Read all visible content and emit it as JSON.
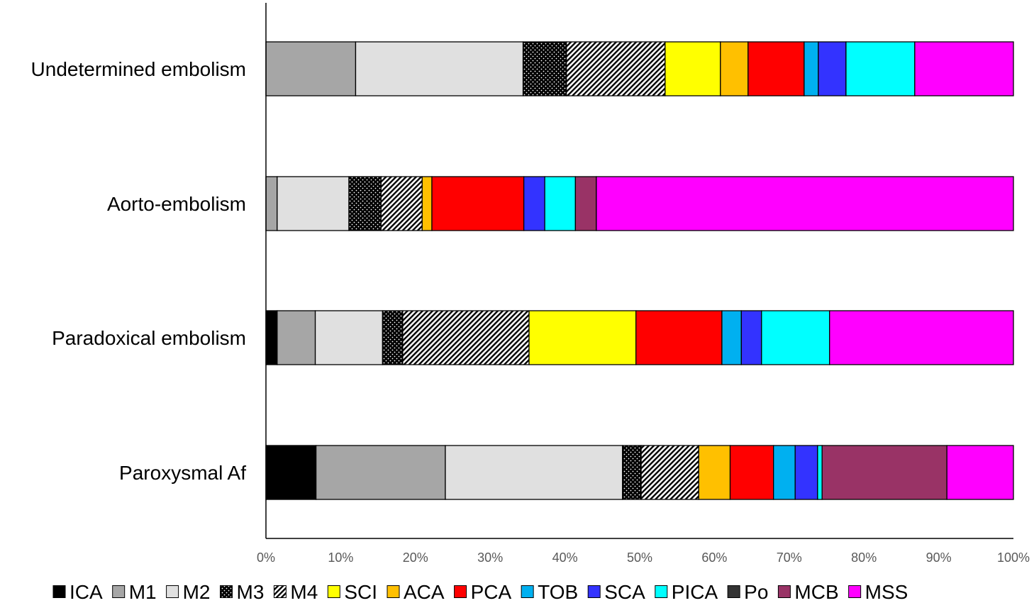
{
  "chart_data": {
    "type": "bar",
    "orientation": "horizontal",
    "stacked": "percent",
    "categories": [
      "Undetermined embolism",
      "Aorto-embolism",
      "Paradoxical embolism",
      "Paroxysmal Af"
    ],
    "xlim": [
      0,
      100
    ],
    "x_ticks": [
      "0%",
      "10%",
      "20%",
      "30%",
      "40%",
      "50%",
      "60%",
      "70%",
      "80%",
      "90%",
      "100%"
    ],
    "grid": false,
    "legend_position": "bottom",
    "series": [
      {
        "name": "ICA",
        "color": "#000000",
        "pattern": "solid",
        "values": [
          0,
          0,
          1.5,
          6.7
        ]
      },
      {
        "name": "M1",
        "color": "#a6a6a6",
        "pattern": "solid",
        "values": [
          12.0,
          1.5,
          5.1,
          17.3
        ]
      },
      {
        "name": "M2",
        "color": "#e0e0e0",
        "pattern": "solid",
        "values": [
          22.4,
          9.6,
          9.0,
          23.7
        ]
      },
      {
        "name": "M3",
        "color": "#000000",
        "pattern": "dots",
        "values": [
          5.8,
          4.3,
          2.7,
          2.5
        ]
      },
      {
        "name": "M4",
        "color": "#000000",
        "pattern": "hatch",
        "values": [
          13.2,
          5.5,
          16.9,
          7.7
        ]
      },
      {
        "name": "SCI",
        "color": "#ffff00",
        "pattern": "solid",
        "values": [
          7.4,
          0,
          14.3,
          0
        ]
      },
      {
        "name": "ACA",
        "color": "#ffc000",
        "pattern": "solid",
        "values": [
          3.7,
          1.3,
          0,
          4.2
        ]
      },
      {
        "name": "PCA",
        "color": "#ff0000",
        "pattern": "solid",
        "values": [
          7.5,
          12.3,
          11.5,
          5.8
        ]
      },
      {
        "name": "TOB",
        "color": "#00b0f0",
        "pattern": "solid",
        "values": [
          1.9,
          0,
          2.6,
          2.9
        ]
      },
      {
        "name": "SCA",
        "color": "#3333ff",
        "pattern": "solid",
        "values": [
          3.7,
          2.8,
          2.7,
          3.0
        ]
      },
      {
        "name": "PICA",
        "color": "#00ffff",
        "pattern": "solid",
        "values": [
          9.2,
          4.1,
          9.1,
          0.6
        ]
      },
      {
        "name": "Po",
        "color": "#333333",
        "pattern": "solid",
        "values": [
          0,
          0,
          0,
          0
        ]
      },
      {
        "name": "MCB",
        "color": "#993366",
        "pattern": "solid",
        "values": [
          0,
          2.8,
          0,
          16.7
        ]
      },
      {
        "name": "MSS",
        "color": "#ff00ff",
        "pattern": "solid",
        "values": [
          13.2,
          55.8,
          24.6,
          8.9
        ]
      }
    ]
  }
}
